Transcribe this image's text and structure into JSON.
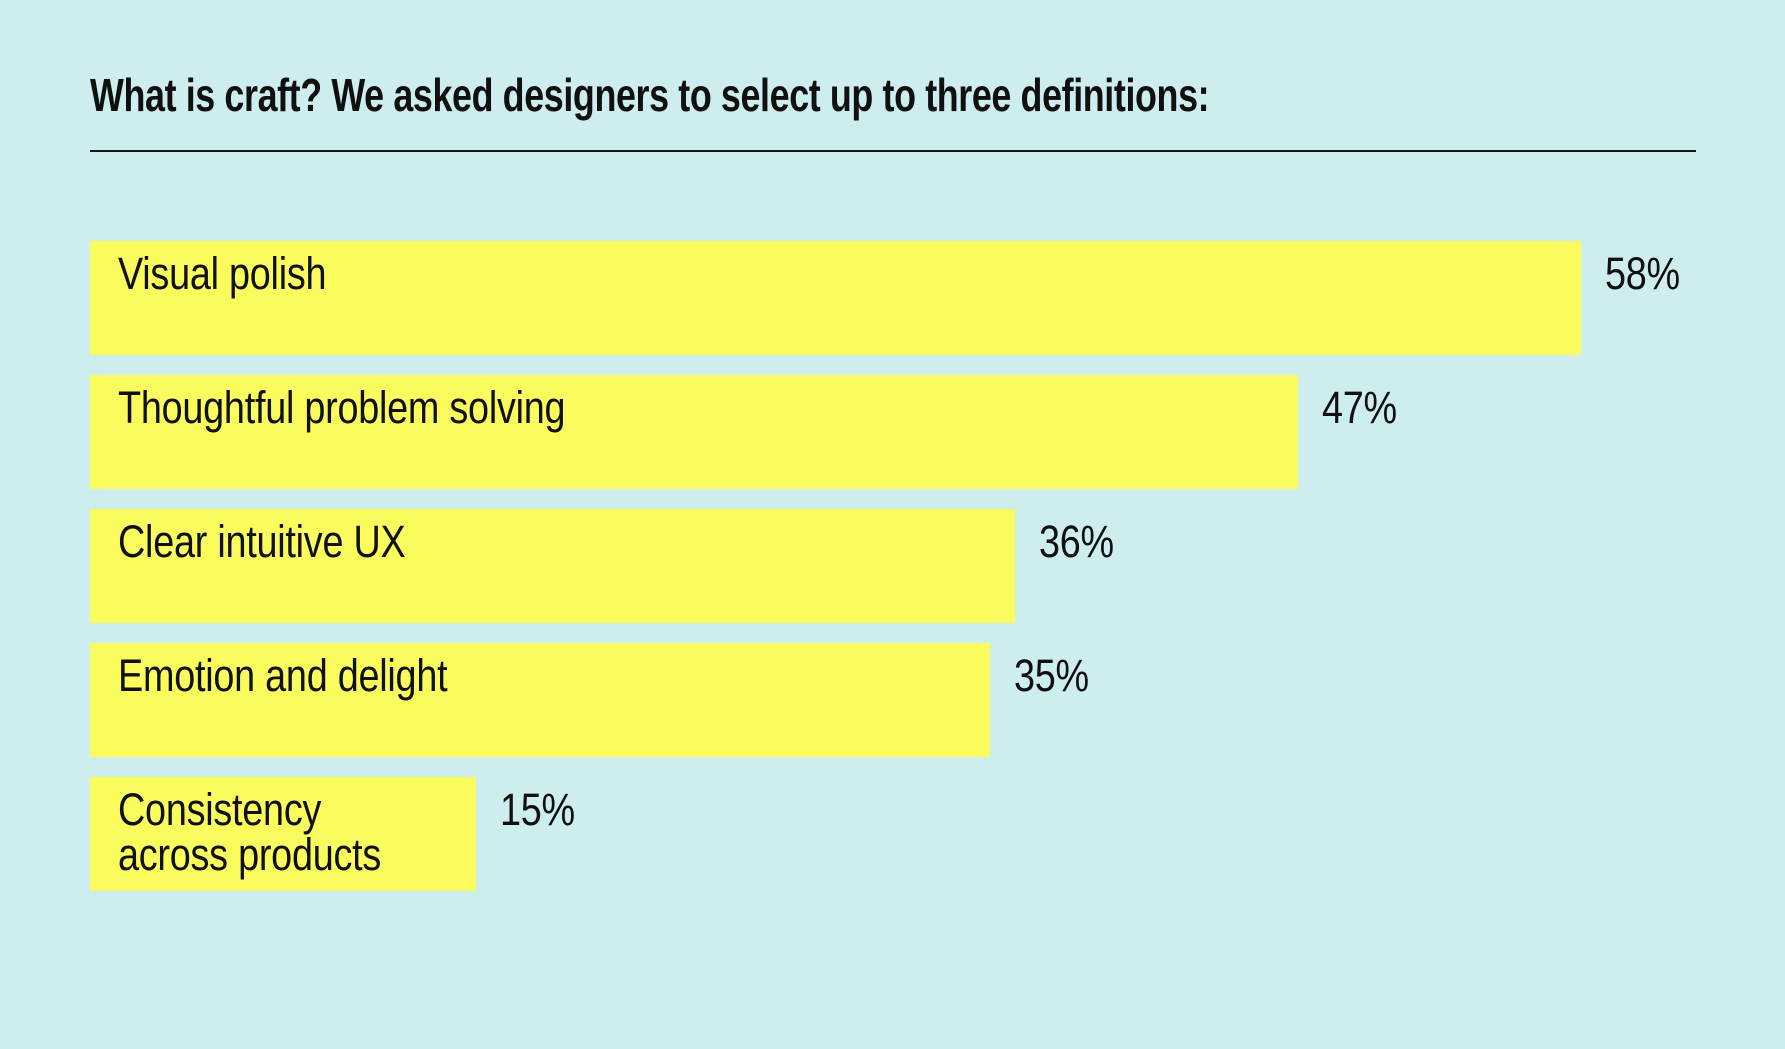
{
  "page": {
    "background_color": "#CEEDEF",
    "bar_color": "#FAFB5C",
    "text_color": "#101010",
    "rule_color": "#161616"
  },
  "chart_data": {
    "type": "bar",
    "orientation": "horizontal",
    "title": "What is craft? We asked designers to select up to three definitions:",
    "categories": [
      "Visual polish",
      "Thoughtful problem solving",
      "Clear intuitive UX",
      "Emotion and delight",
      "Consistency across products"
    ],
    "values": [
      58,
      47,
      36,
      35,
      15
    ],
    "value_labels": [
      "58%",
      "47%",
      "36%",
      "35%",
      "15%"
    ],
    "unit": "%",
    "value_label_position": "right-of-bar",
    "category_label_position": "inside-bar-top-left",
    "xlim": [
      0,
      65
    ],
    "grid": false,
    "legend": false,
    "axes_visible": false
  }
}
